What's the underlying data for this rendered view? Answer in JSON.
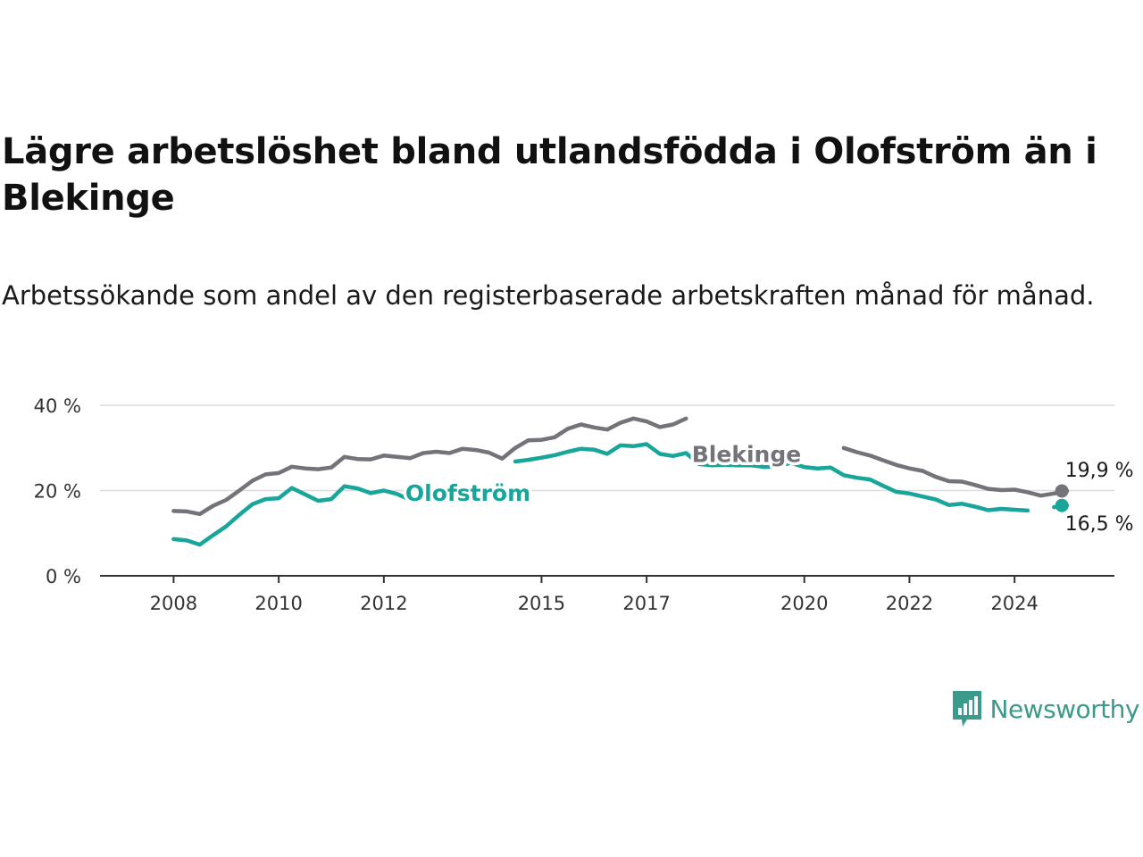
{
  "title": "Lägre arbetslöshet bland utlandsfödda i Olofström än i Blekinge",
  "subtitle": "Arbetssökande som andel av den registerbaserade arbetskraften månad för månad.",
  "brand": {
    "name": "Newsworthy",
    "color": "#3a9a8c"
  },
  "chart_data": {
    "type": "line",
    "x_start": 2008.0,
    "x_step": 0.25,
    "xlim": [
      2006.6,
      2025.9
    ],
    "ylim": [
      0,
      40
    ],
    "y_ticks": [
      0,
      20,
      40
    ],
    "y_tick_labels": [
      "0 %",
      "20 %",
      "40 %"
    ],
    "x_ticks": [
      2008,
      2010,
      2012,
      2015,
      2017,
      2020,
      2022,
      2024
    ],
    "x_tick_labels": [
      "2008",
      "2010",
      "2012",
      "2015",
      "2017",
      "2020",
      "2022",
      "2024"
    ],
    "grid": true,
    "series": [
      {
        "name": "Blekinge",
        "color": "#74737a",
        "values": [
          15.2,
          15.1,
          14.5,
          16.4,
          17.8,
          20.0,
          22.3,
          23.8,
          24.1,
          25.6,
          25.2,
          25.0,
          25.4,
          27.9,
          27.4,
          27.3,
          28.2,
          27.9,
          27.6,
          28.8,
          29.1,
          28.8,
          29.8,
          29.5,
          28.9,
          27.5,
          30.0,
          31.8,
          31.9,
          32.5,
          34.5,
          35.5,
          34.8,
          34.3,
          35.9,
          36.9,
          36.2,
          34.9,
          35.5,
          36.9,
          null,
          null,
          null,
          null,
          null,
          null,
          null,
          null,
          null,
          null,
          null,
          30.0,
          29.0,
          28.2,
          27.1,
          26.0,
          25.2,
          24.6,
          23.2,
          22.2,
          22.1,
          21.3,
          20.4,
          20.1,
          20.2,
          19.6,
          18.8,
          19.3,
          19.9
        ]
      },
      {
        "name": "Olofström",
        "color": "#18a59a",
        "values": [
          8.6,
          8.3,
          7.3,
          9.5,
          11.6,
          14.3,
          16.8,
          18.0,
          18.2,
          20.6,
          19.1,
          17.6,
          18.0,
          21.0,
          20.5,
          19.4,
          20.0,
          19.2,
          17.8,
          null,
          null,
          null,
          null,
          null,
          null,
          null,
          26.8,
          27.2,
          27.7,
          28.3,
          29.1,
          29.8,
          29.6,
          28.6,
          30.6,
          30.4,
          30.9,
          28.6,
          28.1,
          28.8,
          26.2,
          25.9,
          26.0,
          25.9,
          25.9,
          25.5,
          25.8,
          26.5,
          25.5,
          25.2,
          25.4,
          23.6,
          23.0,
          22.6,
          21.1,
          19.7,
          19.3,
          18.6,
          17.9,
          16.6,
          16.9,
          16.2,
          15.4,
          15.7,
          15.5,
          15.3,
          null,
          16.1,
          16.5
        ]
      }
    ],
    "annotations": [
      {
        "series": "Olofström",
        "text": "Olofström",
        "x": 2013.6,
        "y": 19.5
      },
      {
        "series": "Blekinge",
        "text": "Blekinge",
        "x": 2018.9,
        "y": 28.6
      }
    ],
    "end_labels": [
      {
        "series": "Blekinge",
        "text": "19,9 %",
        "x": 2024.9,
        "y": 19.9
      },
      {
        "series": "Olofström",
        "text": "16,5 %",
        "x": 2024.9,
        "y": 16.5
      }
    ]
  }
}
